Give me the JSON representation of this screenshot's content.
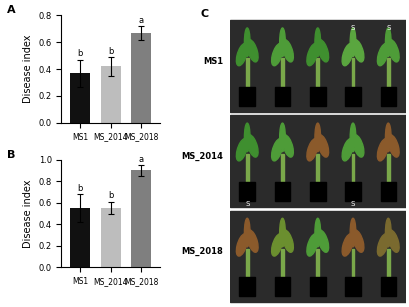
{
  "chart_data": [
    {
      "type": "bar",
      "title": "A",
      "ylabel": "Disease index",
      "categories": [
        "MS1",
        "MS_2014",
        "MS_2018"
      ],
      "values": [
        0.37,
        0.42,
        0.67
      ],
      "errors": [
        0.1,
        0.07,
        0.05
      ],
      "annotations": [
        "b",
        "b",
        "a"
      ],
      "colors": [
        "#111111",
        "#bdbdbd",
        "#7f7f7f"
      ],
      "ylim": [
        0,
        0.8
      ],
      "yticks": [
        0.0,
        0.2,
        0.4,
        0.6,
        0.8
      ]
    },
    {
      "type": "bar",
      "title": "B",
      "ylabel": "Disease index",
      "categories": [
        "MS1",
        "MS_2014",
        "MS_2018"
      ],
      "values": [
        0.55,
        0.55,
        0.9
      ],
      "errors": [
        0.13,
        0.06,
        0.05
      ],
      "annotations": [
        "b",
        "b",
        "a"
      ],
      "colors": [
        "#111111",
        "#bdbdbd",
        "#7f7f7f"
      ],
      "ylim": [
        0,
        1.0
      ],
      "yticks": [
        0.0,
        0.2,
        0.4,
        0.6,
        0.8,
        1.0
      ]
    }
  ],
  "photo_panel": {
    "label": "C",
    "rows": [
      {
        "name": "MS1",
        "marks": [
          null,
          null,
          null,
          "S",
          "S"
        ]
      },
      {
        "name": "MS_2014",
        "marks": [
          "S",
          null,
          null,
          "S",
          null
        ]
      },
      {
        "name": "MS_2018",
        "marks": [
          null,
          null,
          null,
          null,
          null
        ]
      }
    ]
  }
}
